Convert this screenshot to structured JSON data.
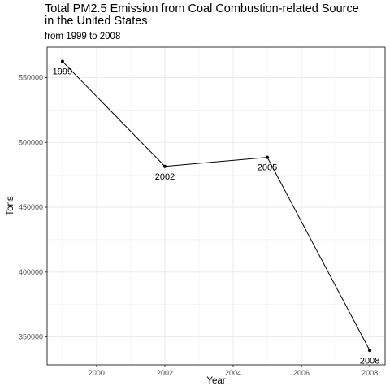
{
  "chart_data": {
    "type": "line",
    "title": "Total PM2.5 Emission from Coal Combustion-related Source\nin the United States",
    "subtitle": "from 1999 to 2008",
    "xlabel": "Year",
    "ylabel": "Tons",
    "x": [
      1999,
      2002,
      2005,
      2008
    ],
    "values": [
      562500,
      481500,
      488500,
      339500
    ],
    "point_labels": [
      "1999",
      "2002",
      "2005",
      "2008"
    ],
    "x_ticks": [
      2000,
      2002,
      2004,
      2006,
      2008
    ],
    "x_tick_labels": [
      "2000",
      "2002",
      "2004",
      "2006",
      "2008"
    ],
    "y_ticks": [
      350000,
      400000,
      450000,
      500000,
      550000
    ],
    "y_tick_labels": [
      "350000",
      "400000",
      "450000",
      "500000",
      "550000"
    ],
    "xlim": [
      1998.55,
      2008.45
    ],
    "ylim": [
      328400,
      573500
    ],
    "grid": true,
    "colors": {
      "line": "#000000",
      "grid": "#ebebeb",
      "border": "#333333",
      "tick_text": "#4d4d4d"
    }
  }
}
